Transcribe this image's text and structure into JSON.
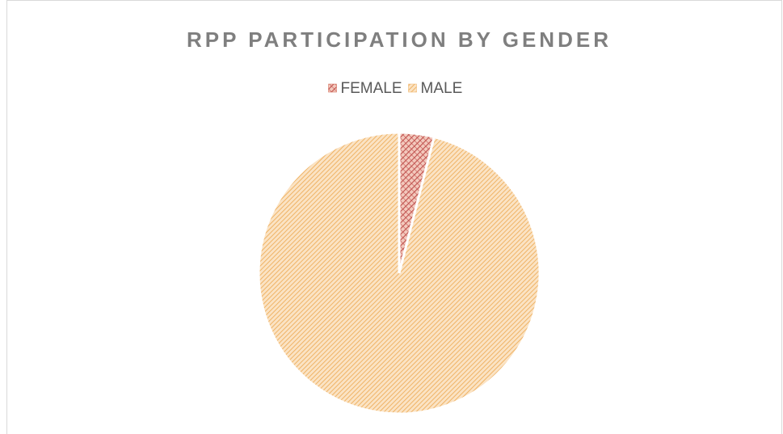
{
  "chart_data": {
    "type": "pie",
    "title": "RPP PARTICIPATION BY GENDER",
    "categories": [
      "FEMALE",
      "MALE"
    ],
    "values": [
      4,
      96
    ],
    "colors": [
      "#d0604a",
      "#f0b060"
    ],
    "legend": "top"
  }
}
